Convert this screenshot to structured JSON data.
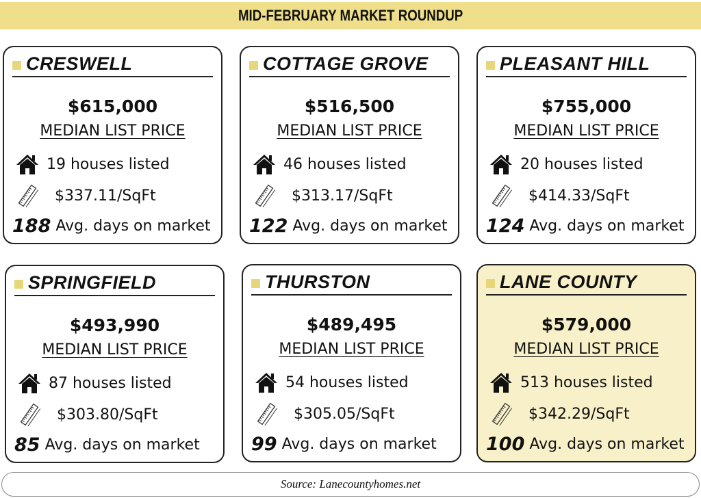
{
  "title": "MID-FEBRUARY MARKET ROUNDUP",
  "price_label": "MEDIAN LIST PRICE",
  "days_label": "Avg. days on market",
  "highlight_color": "#f8f0c8",
  "accent_color": "#efdf8a",
  "cards": [
    {
      "name": "CRESWELL",
      "price": "$615,000",
      "houses": "19 houses listed",
      "sqft": "$337.11/SqFt",
      "days": "188"
    },
    {
      "name": "COTTAGE GROVE",
      "price": "$516,500",
      "houses": "46 houses listed",
      "sqft": "$313.17/SqFt",
      "days": "122"
    },
    {
      "name": "PLEASANT HILL",
      "price": "$755,000",
      "houses": "20 houses listed",
      "sqft": "$414.33/SqFt",
      "days": "124"
    },
    {
      "name": "SPRINGFIELD",
      "price": "$493,990",
      "houses": "87 houses listed",
      "sqft": "$303.80/SqFt",
      "days": "85"
    },
    {
      "name": "THURSTON",
      "price": "$489,495",
      "houses": "54 houses listed",
      "sqft": "$305.05/SqFt",
      "days": "99"
    },
    {
      "name": "LANE COUNTY",
      "price": "$579,000",
      "houses": "513 houses listed",
      "sqft": "$342.29/SqFt",
      "days": "100",
      "highlight": true
    }
  ],
  "source": "Source: Lanecountyhomes.net"
}
